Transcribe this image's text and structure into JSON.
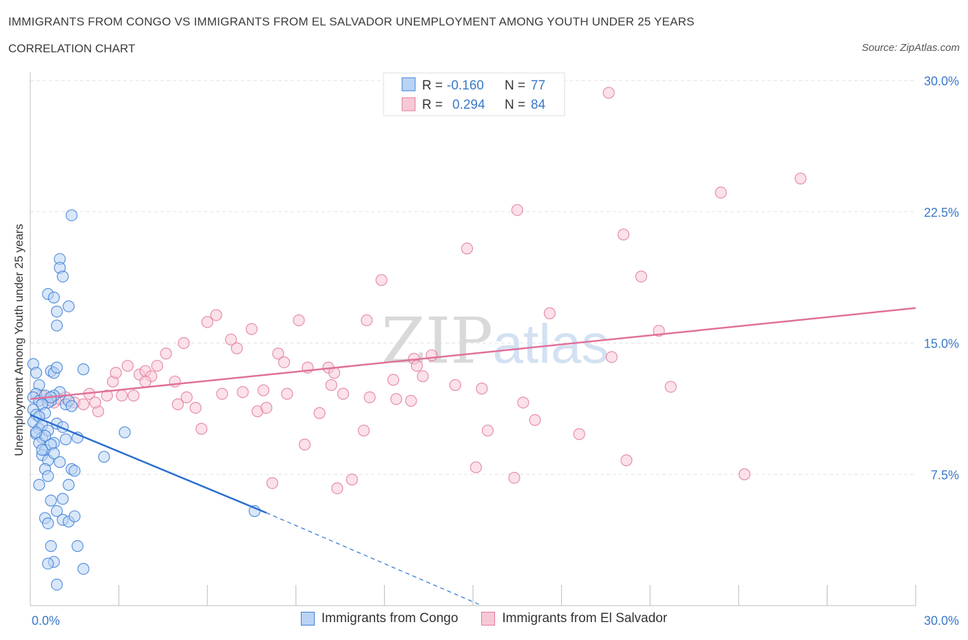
{
  "header": {
    "title": "IMMIGRANTS FROM CONGO VS IMMIGRANTS FROM EL SALVADOR UNEMPLOYMENT AMONG YOUTH UNDER 25 YEARS",
    "subtitle": "CORRELATION CHART",
    "source_label": "Source:",
    "source_value": "ZipAtlas.com"
  },
  "colors": {
    "congo_fill": "#b9d3f4",
    "congo_stroke": "#3d7fd6",
    "congo_line": "#2a6fd0",
    "elsalvador_fill": "#f7c9d6",
    "elsalvador_stroke": "#e27a9c",
    "elsalvador_line": "#e0709a",
    "tick_label": "#3a78c9",
    "grid": "#e2e2e2"
  },
  "legend_box": {
    "rows": [
      {
        "r_label": "R =",
        "r_value": "-0.160",
        "n_label": "N =",
        "n_value": "77"
      },
      {
        "r_label": "R =",
        "r_value": "0.294",
        "n_label": "N =",
        "n_value": "84"
      }
    ]
  },
  "watermark": {
    "zip": "ZIP",
    "atlas": "atlas"
  },
  "chart_data": {
    "type": "scatter",
    "xlabel": "",
    "ylabel": "Unemployment Among Youth under 25 years",
    "xlim": [
      0,
      30
    ],
    "ylim": [
      0,
      30
    ],
    "x_tick_labels": [
      "0.0%",
      "30.0%"
    ],
    "y_ticks": [
      7.5,
      15.0,
      22.5,
      30.0
    ],
    "y_tick_labels": [
      "7.5%",
      "15.0%",
      "22.5%",
      "30.0%"
    ],
    "grid": true,
    "series": [
      {
        "name": "Immigrants from Congo",
        "r": -0.16,
        "n": 77,
        "trend": {
          "x": [
            0.0,
            8.0
          ],
          "y": [
            10.9,
            5.3
          ]
        },
        "trend_extension": {
          "x": [
            8.0,
            15.3
          ],
          "y": [
            5.3,
            0.0
          ]
        },
        "points": [
          [
            0.1,
            13.8
          ],
          [
            0.2,
            13.3
          ],
          [
            0.3,
            12.6
          ],
          [
            0.2,
            12.1
          ],
          [
            0.1,
            11.9
          ],
          [
            0.3,
            11.7
          ],
          [
            0.1,
            11.2
          ],
          [
            0.2,
            10.9
          ],
          [
            0.1,
            10.5
          ],
          [
            0.3,
            10.1
          ],
          [
            0.2,
            9.8
          ],
          [
            0.4,
            9.6
          ],
          [
            0.3,
            9.3
          ],
          [
            0.5,
            8.9
          ],
          [
            0.4,
            8.6
          ],
          [
            0.6,
            8.3
          ],
          [
            0.5,
            7.8
          ],
          [
            0.6,
            7.4
          ],
          [
            0.3,
            6.9
          ],
          [
            0.7,
            6.0
          ],
          [
            0.5,
            5.0
          ],
          [
            0.6,
            4.7
          ],
          [
            0.7,
            3.4
          ],
          [
            0.8,
            2.5
          ],
          [
            0.6,
            2.4
          ],
          [
            0.9,
            1.2
          ],
          [
            1.0,
            19.8
          ],
          [
            1.0,
            19.3
          ],
          [
            1.1,
            18.8
          ],
          [
            0.6,
            17.8
          ],
          [
            0.8,
            17.6
          ],
          [
            1.3,
            17.1
          ],
          [
            0.9,
            16.8
          ],
          [
            0.9,
            16.0
          ],
          [
            1.4,
            22.3
          ],
          [
            0.7,
            13.4
          ],
          [
            0.8,
            13.3
          ],
          [
            0.9,
            13.6
          ],
          [
            1.0,
            12.2
          ],
          [
            0.8,
            12.0
          ],
          [
            0.7,
            11.7
          ],
          [
            1.2,
            11.5
          ],
          [
            1.3,
            11.7
          ],
          [
            1.4,
            11.4
          ],
          [
            0.9,
            10.4
          ],
          [
            1.1,
            10.2
          ],
          [
            1.2,
            9.5
          ],
          [
            0.8,
            9.3
          ],
          [
            1.6,
            9.6
          ],
          [
            1.8,
            13.5
          ],
          [
            2.5,
            8.5
          ],
          [
            3.2,
            9.9
          ],
          [
            7.6,
            5.4
          ],
          [
            1.0,
            8.2
          ],
          [
            1.4,
            7.8
          ],
          [
            1.5,
            7.7
          ],
          [
            1.1,
            6.1
          ],
          [
            1.3,
            6.9
          ],
          [
            0.9,
            5.4
          ],
          [
            1.1,
            4.9
          ],
          [
            1.3,
            4.8
          ],
          [
            1.5,
            5.1
          ],
          [
            1.6,
            3.4
          ],
          [
            1.8,
            2.1
          ],
          [
            0.5,
            12.0
          ],
          [
            0.6,
            11.6
          ],
          [
            0.7,
            11.9
          ],
          [
            0.4,
            11.5
          ],
          [
            0.5,
            11.0
          ],
          [
            0.3,
            10.8
          ],
          [
            0.4,
            10.3
          ],
          [
            0.6,
            10.0
          ],
          [
            0.5,
            9.7
          ],
          [
            0.2,
            9.9
          ],
          [
            0.7,
            9.2
          ],
          [
            0.4,
            8.9
          ],
          [
            0.8,
            8.7
          ]
        ]
      },
      {
        "name": "Immigrants from El Salvador",
        "r": 0.294,
        "n": 84,
        "trend": {
          "x": [
            0.0,
            30.0
          ],
          "y": [
            11.8,
            17.0
          ]
        },
        "points": [
          [
            0.4,
            12.0
          ],
          [
            0.6,
            11.8
          ],
          [
            0.8,
            11.6
          ],
          [
            1.0,
            11.8
          ],
          [
            1.2,
            11.9
          ],
          [
            1.5,
            11.6
          ],
          [
            1.8,
            11.5
          ],
          [
            2.0,
            12.1
          ],
          [
            2.3,
            11.1
          ],
          [
            2.6,
            12.0
          ],
          [
            2.8,
            12.8
          ],
          [
            2.9,
            13.3
          ],
          [
            3.1,
            12.0
          ],
          [
            3.3,
            13.7
          ],
          [
            3.5,
            12.0
          ],
          [
            3.7,
            13.2
          ],
          [
            3.9,
            13.4
          ],
          [
            4.1,
            13.1
          ],
          [
            4.3,
            13.7
          ],
          [
            4.6,
            14.4
          ],
          [
            4.9,
            12.8
          ],
          [
            5.2,
            15.0
          ],
          [
            5.3,
            11.9
          ],
          [
            5.6,
            11.3
          ],
          [
            5.8,
            10.1
          ],
          [
            6.0,
            16.2
          ],
          [
            6.3,
            16.6
          ],
          [
            6.5,
            12.1
          ],
          [
            6.8,
            15.2
          ],
          [
            7.0,
            14.7
          ],
          [
            7.2,
            12.2
          ],
          [
            7.5,
            15.8
          ],
          [
            7.7,
            11.1
          ],
          [
            8.0,
            11.3
          ],
          [
            8.2,
            7.0
          ],
          [
            8.4,
            14.4
          ],
          [
            8.6,
            13.9
          ],
          [
            8.7,
            12.1
          ],
          [
            9.1,
            16.3
          ],
          [
            9.3,
            9.2
          ],
          [
            9.4,
            13.6
          ],
          [
            9.8,
            11.0
          ],
          [
            10.1,
            13.6
          ],
          [
            10.3,
            13.3
          ],
          [
            10.4,
            6.7
          ],
          [
            10.6,
            12.1
          ],
          [
            10.9,
            7.2
          ],
          [
            11.3,
            10.0
          ],
          [
            11.4,
            16.3
          ],
          [
            11.5,
            11.9
          ],
          [
            11.9,
            18.6
          ],
          [
            12.3,
            12.9
          ],
          [
            12.4,
            11.8
          ],
          [
            12.9,
            11.7
          ],
          [
            13.0,
            14.1
          ],
          [
            13.1,
            13.7
          ],
          [
            13.3,
            13.1
          ],
          [
            13.6,
            14.3
          ],
          [
            14.4,
            12.6
          ],
          [
            14.8,
            20.4
          ],
          [
            15.1,
            7.9
          ],
          [
            15.3,
            12.4
          ],
          [
            15.5,
            10.0
          ],
          [
            16.4,
            7.3
          ],
          [
            16.5,
            22.6
          ],
          [
            16.7,
            11.6
          ],
          [
            17.1,
            10.6
          ],
          [
            17.6,
            16.7
          ],
          [
            18.6,
            9.8
          ],
          [
            19.6,
            29.3
          ],
          [
            19.7,
            14.2
          ],
          [
            20.1,
            21.2
          ],
          [
            20.2,
            8.3
          ],
          [
            20.7,
            18.8
          ],
          [
            21.3,
            15.7
          ],
          [
            21.7,
            12.5
          ],
          [
            23.4,
            23.6
          ],
          [
            24.2,
            7.5
          ],
          [
            26.1,
            24.4
          ],
          [
            3.9,
            12.8
          ],
          [
            2.2,
            11.6
          ],
          [
            5.0,
            11.5
          ],
          [
            7.9,
            12.3
          ],
          [
            10.2,
            12.6
          ]
        ]
      }
    ]
  }
}
